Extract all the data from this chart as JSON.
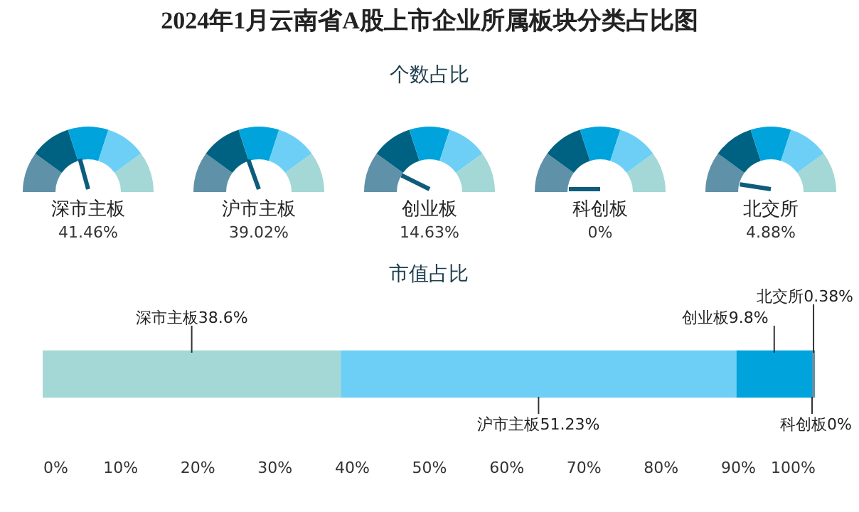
{
  "chart_data": [
    {
      "type": "other",
      "title": "2024年1月云南省A股上市企业所属板块分类占比图",
      "subtitle": "个数占比",
      "categories": [
        "深市主板",
        "沪市主板",
        "创业板",
        "科创板",
        "北交所"
      ],
      "values": [
        41.46,
        39.02,
        14.63,
        0,
        4.88
      ],
      "value_labels": [
        "41.46%",
        "39.02%",
        "14.63%",
        "0%",
        "4.88%"
      ],
      "colors": [
        "#5f91a8",
        "#006282",
        "#00a3dc",
        "#6dcff6",
        "#a3d8d6"
      ]
    },
    {
      "type": "bar",
      "orientation": "horizontal",
      "stacked": true,
      "title": "市值占比",
      "categories": [
        null
      ],
      "series": [
        {
          "name": "深市主板",
          "color": "#a3d8d6",
          "values": [
            38.6
          ],
          "value_labels": [
            "38.6%"
          ]
        },
        {
          "name": "沪市主板",
          "color": "#6dcff6",
          "values": [
            51.23
          ],
          "value_labels": [
            "51.23%"
          ]
        },
        {
          "name": "创业板",
          "color": "#00a3dc",
          "values": [
            9.8
          ],
          "value_labels": [
            "9.8%"
          ]
        },
        {
          "name": "科创板",
          "color": "#006282",
          "values": [
            0
          ],
          "value_labels": [
            "0%"
          ]
        },
        {
          "name": "北交所",
          "color": "#5f91a8",
          "values": [
            0.38
          ],
          "value_labels": [
            "0.38%"
          ]
        }
      ],
      "xlim": [
        0,
        100
      ],
      "xticks": [
        {
          "value": 0,
          "label": "0%"
        },
        {
          "value": 10,
          "label": "10%"
        },
        {
          "value": 20,
          "label": "20%"
        },
        {
          "value": 30,
          "label": "30%"
        },
        {
          "value": 40,
          "label": "40%"
        },
        {
          "value": 50,
          "label": "50%"
        },
        {
          "value": 60,
          "label": "60%"
        },
        {
          "value": 70,
          "label": "70%"
        },
        {
          "value": 80,
          "label": "80%"
        },
        {
          "value": 90,
          "label": "90%"
        },
        {
          "value": 100,
          "label": "100%"
        }
      ],
      "grid": false,
      "legend": false
    }
  ]
}
